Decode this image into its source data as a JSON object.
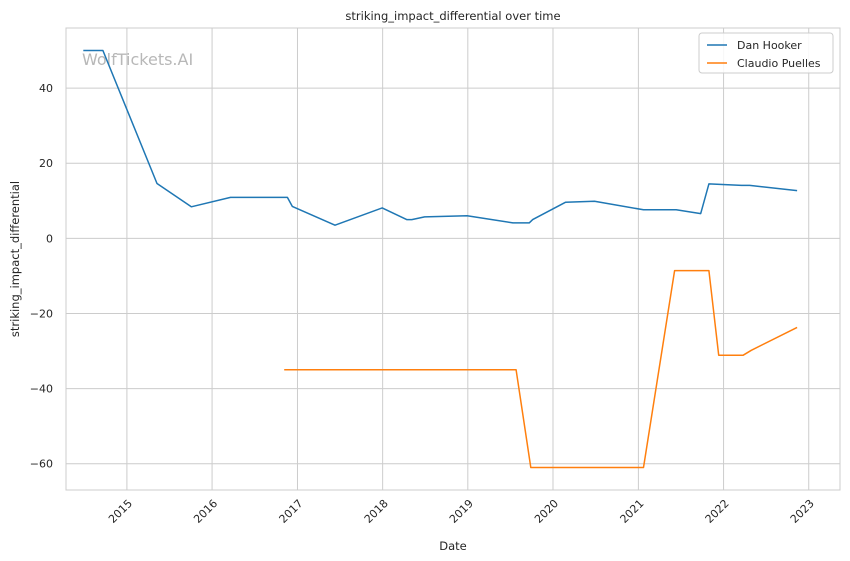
{
  "chart_data": {
    "type": "line",
    "title": "striking_impact_differential over time",
    "xlabel": "Date",
    "ylabel": "striking_impact_differential",
    "watermark": "WolfTickets.AI",
    "xlim": [
      "2014-04-15",
      "2023-05-15"
    ],
    "ylim": [
      -67,
      56
    ],
    "x_ticks": [
      "2015",
      "2016",
      "2017",
      "2018",
      "2019",
      "2020",
      "2021",
      "2022",
      "2023"
    ],
    "y_ticks": [
      40,
      20,
      0,
      -20,
      -40,
      -60
    ],
    "y_tick_labels": [
      "40",
      "20",
      "0",
      "−20",
      "−40",
      "−60"
    ],
    "grid": true,
    "legend_position": "top-right",
    "series": [
      {
        "name": "Dan Hooker",
        "color": "#1f77b4",
        "points": [
          [
            "2014-06-28",
            50.0
          ],
          [
            "2014-09-20",
            50.0
          ],
          [
            "2015-05-10",
            14.6
          ],
          [
            "2015-10-04",
            8.4
          ],
          [
            "2016-03-20",
            10.9
          ],
          [
            "2016-11-19",
            10.9
          ],
          [
            "2016-12-10",
            8.5
          ],
          [
            "2017-06-11",
            3.5
          ],
          [
            "2017-12-30",
            8.1
          ],
          [
            "2018-04-14",
            5.0
          ],
          [
            "2018-05-06",
            5.0
          ],
          [
            "2018-06-30",
            5.7
          ],
          [
            "2018-12-29",
            6.0
          ],
          [
            "2019-07-13",
            4.1
          ],
          [
            "2019-09-21",
            4.1
          ],
          [
            "2019-10-06",
            5.0
          ],
          [
            "2020-02-23",
            9.6
          ],
          [
            "2020-06-27",
            9.9
          ],
          [
            "2021-01-23",
            7.6
          ],
          [
            "2021-06-12",
            7.6
          ],
          [
            "2021-09-25",
            6.6
          ],
          [
            "2021-10-30",
            14.5
          ],
          [
            "2022-03-19",
            14.1
          ],
          [
            "2022-04-23",
            14.1
          ],
          [
            "2022-11-12",
            12.7
          ]
        ]
      },
      {
        "name": "Claudio Puelles",
        "color": "#ff7f0e",
        "points": [
          [
            "2016-11-05",
            -35.0
          ],
          [
            "2019-07-27",
            -35.0
          ],
          [
            "2019-09-28",
            -61.0
          ],
          [
            "2021-01-23",
            -61.0
          ],
          [
            "2021-06-05",
            -8.6
          ],
          [
            "2021-10-30",
            -8.6
          ],
          [
            "2021-12-11",
            -31.1
          ],
          [
            "2022-03-26",
            -31.1
          ],
          [
            "2022-04-30",
            -29.8
          ],
          [
            "2022-11-12",
            -23.7
          ]
        ]
      }
    ]
  }
}
